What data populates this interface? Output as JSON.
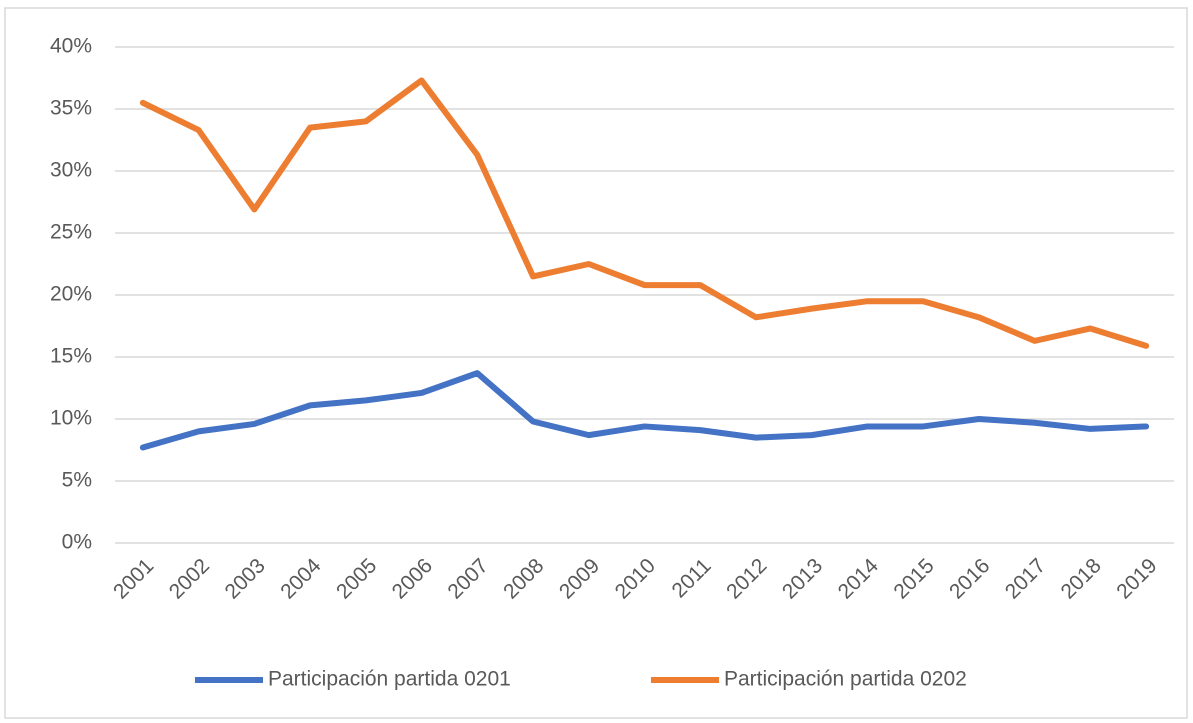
{
  "chart_data": {
    "type": "line",
    "categories": [
      "2001",
      "2002",
      "2003",
      "2004",
      "2005",
      "2006",
      "2007",
      "2008",
      "2009",
      "2010",
      "2011",
      "2012",
      "2013",
      "2014",
      "2015",
      "2016",
      "2017",
      "2018",
      "2019"
    ],
    "series": [
      {
        "name": "Participación partida 0201",
        "color": "#4472c4",
        "values": [
          7.7,
          9.0,
          9.6,
          11.1,
          11.5,
          12.1,
          13.7,
          9.8,
          8.7,
          9.4,
          9.1,
          8.5,
          8.7,
          9.4,
          9.4,
          10.0,
          9.7,
          9.2,
          9.4
        ]
      },
      {
        "name": "Participación partida 0202",
        "color": "#ed7d31",
        "values": [
          35.5,
          33.3,
          26.9,
          33.5,
          34.0,
          37.3,
          31.3,
          21.5,
          22.5,
          20.8,
          20.8,
          18.2,
          18.9,
          19.5,
          19.5,
          18.2,
          16.3,
          17.3,
          15.9
        ]
      }
    ],
    "ylim": [
      0,
      40
    ],
    "yticks": [
      {
        "value": 0,
        "label": "0%"
      },
      {
        "value": 5,
        "label": "5%"
      },
      {
        "value": 10,
        "label": "10%"
      },
      {
        "value": 15,
        "label": "15%"
      },
      {
        "value": 20,
        "label": "20%"
      },
      {
        "value": 25,
        "label": "25%"
      },
      {
        "value": 30,
        "label": "30%"
      },
      {
        "value": 35,
        "label": "35%"
      },
      {
        "value": 40,
        "label": "40%"
      }
    ],
    "grid": true,
    "legend": "bottom"
  }
}
